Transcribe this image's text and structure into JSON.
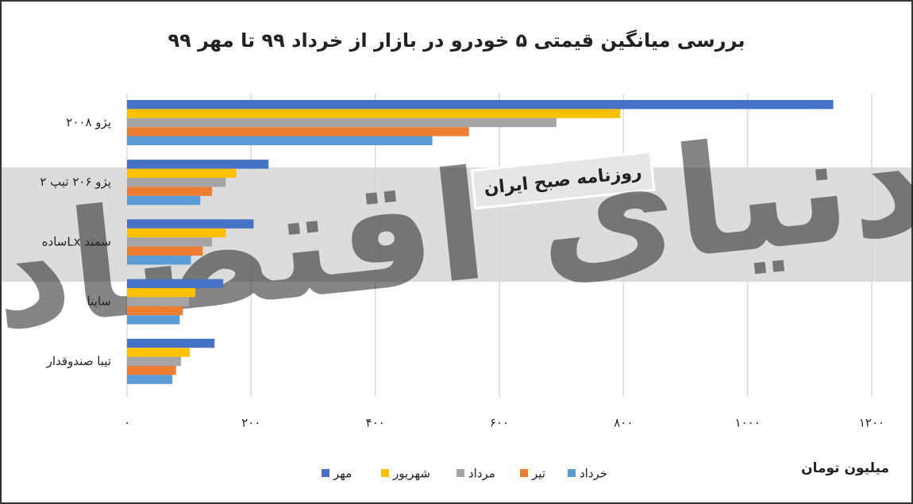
{
  "chart_data": {
    "type": "hbar",
    "title": "بررسی میانگین قیمتی ۵ خودرو در بازار از خرداد ۹۹ تا مهر ۹۹",
    "x_label": "میلیون تومان",
    "categories": [
      "پژو ۲۰۰۸",
      "پژو ۲۰۶ تیپ ۲",
      "سمند  Lxساده",
      "ساینا",
      "تیبا صندوقدار"
    ],
    "series": [
      {
        "name": "مهر",
        "color": "#4472c4",
        "values": [
          1138,
          228,
          204,
          155,
          141
        ]
      },
      {
        "name": "شهریور",
        "color": "#ffc000",
        "values": [
          795,
          176,
          159,
          110,
          101
        ]
      },
      {
        "name": "مرداد",
        "color": "#a5a5a5",
        "values": [
          692,
          159,
          137,
          100,
          87
        ]
      },
      {
        "name": "تیر",
        "color": "#ed7d31",
        "values": [
          551,
          137,
          122,
          90,
          79
        ]
      },
      {
        "name": "خرداد",
        "color": "#5b9bd5",
        "values": [
          492,
          118,
          103,
          85,
          73
        ]
      }
    ],
    "xlim": [
      0,
      1200
    ],
    "xticks": [
      {
        "value": 0,
        "label": "۰"
      },
      {
        "value": 200,
        "label": "۲۰۰"
      },
      {
        "value": 400,
        "label": "۴۰۰"
      },
      {
        "value": 600,
        "label": "۶۰۰"
      },
      {
        "value": 800,
        "label": "۸۰۰"
      },
      {
        "value": 1000,
        "label": "۱۰۰۰"
      },
      {
        "value": 1200,
        "label": "۱۲۰۰"
      }
    ],
    "grid": true,
    "legend": "bottom"
  },
  "watermark": {
    "logo": "دنیای اقتصاد",
    "tagline": "روزنامه صبح ایران"
  }
}
